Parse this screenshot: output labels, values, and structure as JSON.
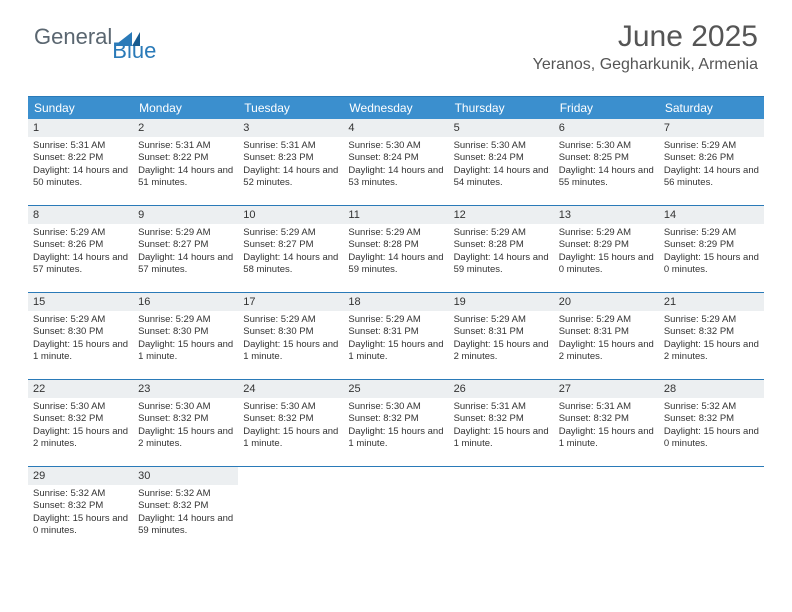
{
  "logo": {
    "text_general": "General",
    "text_blue": "Blue"
  },
  "header": {
    "title": "June 2025",
    "location": "Yeranos, Gegharkunik, Armenia"
  },
  "colors": {
    "header_bg": "#3b8fce",
    "border": "#2a7ab8",
    "day_number_bg": "#eceff1",
    "text": "#333333",
    "logo_gray": "#5a6670",
    "logo_blue": "#2a7ab8"
  },
  "weekdays": [
    "Sunday",
    "Monday",
    "Tuesday",
    "Wednesday",
    "Thursday",
    "Friday",
    "Saturday"
  ],
  "days": [
    {
      "num": 1,
      "sunrise": "5:31 AM",
      "sunset": "8:22 PM",
      "daylight": "14 hours and 50 minutes."
    },
    {
      "num": 2,
      "sunrise": "5:31 AM",
      "sunset": "8:22 PM",
      "daylight": "14 hours and 51 minutes."
    },
    {
      "num": 3,
      "sunrise": "5:31 AM",
      "sunset": "8:23 PM",
      "daylight": "14 hours and 52 minutes."
    },
    {
      "num": 4,
      "sunrise": "5:30 AM",
      "sunset": "8:24 PM",
      "daylight": "14 hours and 53 minutes."
    },
    {
      "num": 5,
      "sunrise": "5:30 AM",
      "sunset": "8:24 PM",
      "daylight": "14 hours and 54 minutes."
    },
    {
      "num": 6,
      "sunrise": "5:30 AM",
      "sunset": "8:25 PM",
      "daylight": "14 hours and 55 minutes."
    },
    {
      "num": 7,
      "sunrise": "5:29 AM",
      "sunset": "8:26 PM",
      "daylight": "14 hours and 56 minutes."
    },
    {
      "num": 8,
      "sunrise": "5:29 AM",
      "sunset": "8:26 PM",
      "daylight": "14 hours and 57 minutes."
    },
    {
      "num": 9,
      "sunrise": "5:29 AM",
      "sunset": "8:27 PM",
      "daylight": "14 hours and 57 minutes."
    },
    {
      "num": 10,
      "sunrise": "5:29 AM",
      "sunset": "8:27 PM",
      "daylight": "14 hours and 58 minutes."
    },
    {
      "num": 11,
      "sunrise": "5:29 AM",
      "sunset": "8:28 PM",
      "daylight": "14 hours and 59 minutes."
    },
    {
      "num": 12,
      "sunrise": "5:29 AM",
      "sunset": "8:28 PM",
      "daylight": "14 hours and 59 minutes."
    },
    {
      "num": 13,
      "sunrise": "5:29 AM",
      "sunset": "8:29 PM",
      "daylight": "15 hours and 0 minutes."
    },
    {
      "num": 14,
      "sunrise": "5:29 AM",
      "sunset": "8:29 PM",
      "daylight": "15 hours and 0 minutes."
    },
    {
      "num": 15,
      "sunrise": "5:29 AM",
      "sunset": "8:30 PM",
      "daylight": "15 hours and 1 minute."
    },
    {
      "num": 16,
      "sunrise": "5:29 AM",
      "sunset": "8:30 PM",
      "daylight": "15 hours and 1 minute."
    },
    {
      "num": 17,
      "sunrise": "5:29 AM",
      "sunset": "8:30 PM",
      "daylight": "15 hours and 1 minute."
    },
    {
      "num": 18,
      "sunrise": "5:29 AM",
      "sunset": "8:31 PM",
      "daylight": "15 hours and 1 minute."
    },
    {
      "num": 19,
      "sunrise": "5:29 AM",
      "sunset": "8:31 PM",
      "daylight": "15 hours and 2 minutes."
    },
    {
      "num": 20,
      "sunrise": "5:29 AM",
      "sunset": "8:31 PM",
      "daylight": "15 hours and 2 minutes."
    },
    {
      "num": 21,
      "sunrise": "5:29 AM",
      "sunset": "8:32 PM",
      "daylight": "15 hours and 2 minutes."
    },
    {
      "num": 22,
      "sunrise": "5:30 AM",
      "sunset": "8:32 PM",
      "daylight": "15 hours and 2 minutes."
    },
    {
      "num": 23,
      "sunrise": "5:30 AM",
      "sunset": "8:32 PM",
      "daylight": "15 hours and 2 minutes."
    },
    {
      "num": 24,
      "sunrise": "5:30 AM",
      "sunset": "8:32 PM",
      "daylight": "15 hours and 1 minute."
    },
    {
      "num": 25,
      "sunrise": "5:30 AM",
      "sunset": "8:32 PM",
      "daylight": "15 hours and 1 minute."
    },
    {
      "num": 26,
      "sunrise": "5:31 AM",
      "sunset": "8:32 PM",
      "daylight": "15 hours and 1 minute."
    },
    {
      "num": 27,
      "sunrise": "5:31 AM",
      "sunset": "8:32 PM",
      "daylight": "15 hours and 1 minute."
    },
    {
      "num": 28,
      "sunrise": "5:32 AM",
      "sunset": "8:32 PM",
      "daylight": "15 hours and 0 minutes."
    },
    {
      "num": 29,
      "sunrise": "5:32 AM",
      "sunset": "8:32 PM",
      "daylight": "15 hours and 0 minutes."
    },
    {
      "num": 30,
      "sunrise": "5:32 AM",
      "sunset": "8:32 PM",
      "daylight": "14 hours and 59 minutes."
    }
  ],
  "labels": {
    "sunrise": "Sunrise: ",
    "sunset": "Sunset: ",
    "daylight": "Daylight: "
  }
}
